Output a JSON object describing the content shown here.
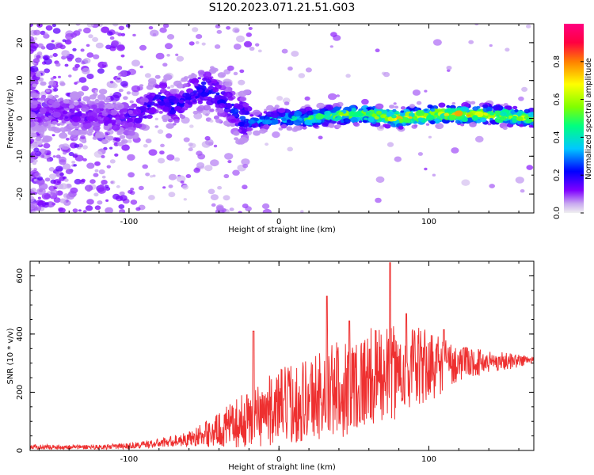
{
  "figure_title": "S120.2023.071.21.51.G03",
  "chart_data": [
    {
      "type": "heatmap",
      "xlabel": "Height of straight line (km)",
      "ylabel": "Frequency (Hz)",
      "xlim": [
        -166,
        170
      ],
      "ylim": [
        -25,
        25
      ],
      "xticks": [
        -100,
        0,
        100
      ],
      "yticks": [
        -20,
        -10,
        0,
        10,
        20
      ],
      "colorbar": {
        "label": "Normalized spectral amplitude",
        "range": [
          0,
          1
        ],
        "ticks": [
          0.0,
          0.2,
          0.4,
          0.6,
          0.8
        ],
        "tick_labels": [
          "0.0",
          "0.2",
          "0.4",
          "0.6",
          "0.8"
        ],
        "colormap": [
          "#f0f0f0",
          "#c8a8f0",
          "#7f00ff",
          "#0000ff",
          "#00c8ff",
          "#00ff80",
          "#80ff00",
          "#ffff00",
          "#ff8000",
          "#ff0040",
          "#ff0080"
        ]
      },
      "ridge": [
        {
          "x": -166,
          "f": 2,
          "amp": 0.15
        },
        {
          "x": -110,
          "f": 0,
          "amp": 0.15
        },
        {
          "x": -100,
          "f": 0,
          "amp": 0.18
        },
        {
          "x": -90,
          "f": 2,
          "amp": 0.2
        },
        {
          "x": -80,
          "f": 6,
          "amp": 0.22
        },
        {
          "x": -70,
          "f": 3,
          "amp": 0.22
        },
        {
          "x": -60,
          "f": 6,
          "amp": 0.2
        },
        {
          "x": -50,
          "f": 8,
          "amp": 0.25
        },
        {
          "x": -40,
          "f": 6,
          "amp": 0.22
        },
        {
          "x": -30,
          "f": 2,
          "amp": 0.25
        },
        {
          "x": -20,
          "f": -1,
          "amp": 0.3
        },
        {
          "x": 0,
          "f": 0,
          "amp": 0.4
        },
        {
          "x": 20,
          "f": 0,
          "amp": 0.55
        },
        {
          "x": 40,
          "f": 1,
          "amp": 0.65
        },
        {
          "x": 60,
          "f": 1,
          "amp": 0.7
        },
        {
          "x": 80,
          "f": 0,
          "amp": 0.75
        },
        {
          "x": 100,
          "f": 1,
          "amp": 0.75
        },
        {
          "x": 120,
          "f": 1,
          "amp": 0.8
        },
        {
          "x": 140,
          "f": 1,
          "amp": 0.75
        },
        {
          "x": 170,
          "f": 0,
          "amp": 0.6
        }
      ]
    },
    {
      "type": "line",
      "xlabel": "Height of straight line (km)",
      "ylabel": "SNR (10 * v/v)",
      "xlim": [
        -166,
        170
      ],
      "ylim": [
        0,
        650
      ],
      "xticks": [
        -100,
        0,
        100
      ],
      "yticks": [
        0,
        200,
        400,
        600
      ],
      "series": [
        {
          "name": "SNR",
          "color": "#ee3030",
          "envelope": [
            {
              "x": -166,
              "mean": 12,
              "spread": 8
            },
            {
              "x": -120,
              "mean": 12,
              "spread": 8
            },
            {
              "x": -100,
              "mean": 15,
              "spread": 10
            },
            {
              "x": -80,
              "mean": 25,
              "spread": 15
            },
            {
              "x": -60,
              "mean": 40,
              "spread": 25
            },
            {
              "x": -40,
              "mean": 70,
              "spread": 60
            },
            {
              "x": -20,
              "mean": 110,
              "spread": 100
            },
            {
              "x": 0,
              "mean": 150,
              "spread": 130
            },
            {
              "x": 20,
              "mean": 180,
              "spread": 150
            },
            {
              "x": 40,
              "mean": 210,
              "spread": 170
            },
            {
              "x": 60,
              "mean": 250,
              "spread": 170
            },
            {
              "x": 80,
              "mean": 270,
              "spread": 160
            },
            {
              "x": 100,
              "mean": 290,
              "spread": 130
            },
            {
              "x": 120,
              "mean": 300,
              "spread": 60
            },
            {
              "x": 140,
              "mean": 305,
              "spread": 40
            },
            {
              "x": 170,
              "mean": 310,
              "spread": 15
            }
          ],
          "peaks": [
            {
              "x": -17,
              "y": 410
            },
            {
              "x": 32,
              "y": 530
            },
            {
              "x": 47,
              "y": 445
            },
            {
              "x": 74,
              "y": 645
            },
            {
              "x": 85,
              "y": 470
            },
            {
              "x": 110,
              "y": 415
            }
          ]
        }
      ]
    }
  ]
}
